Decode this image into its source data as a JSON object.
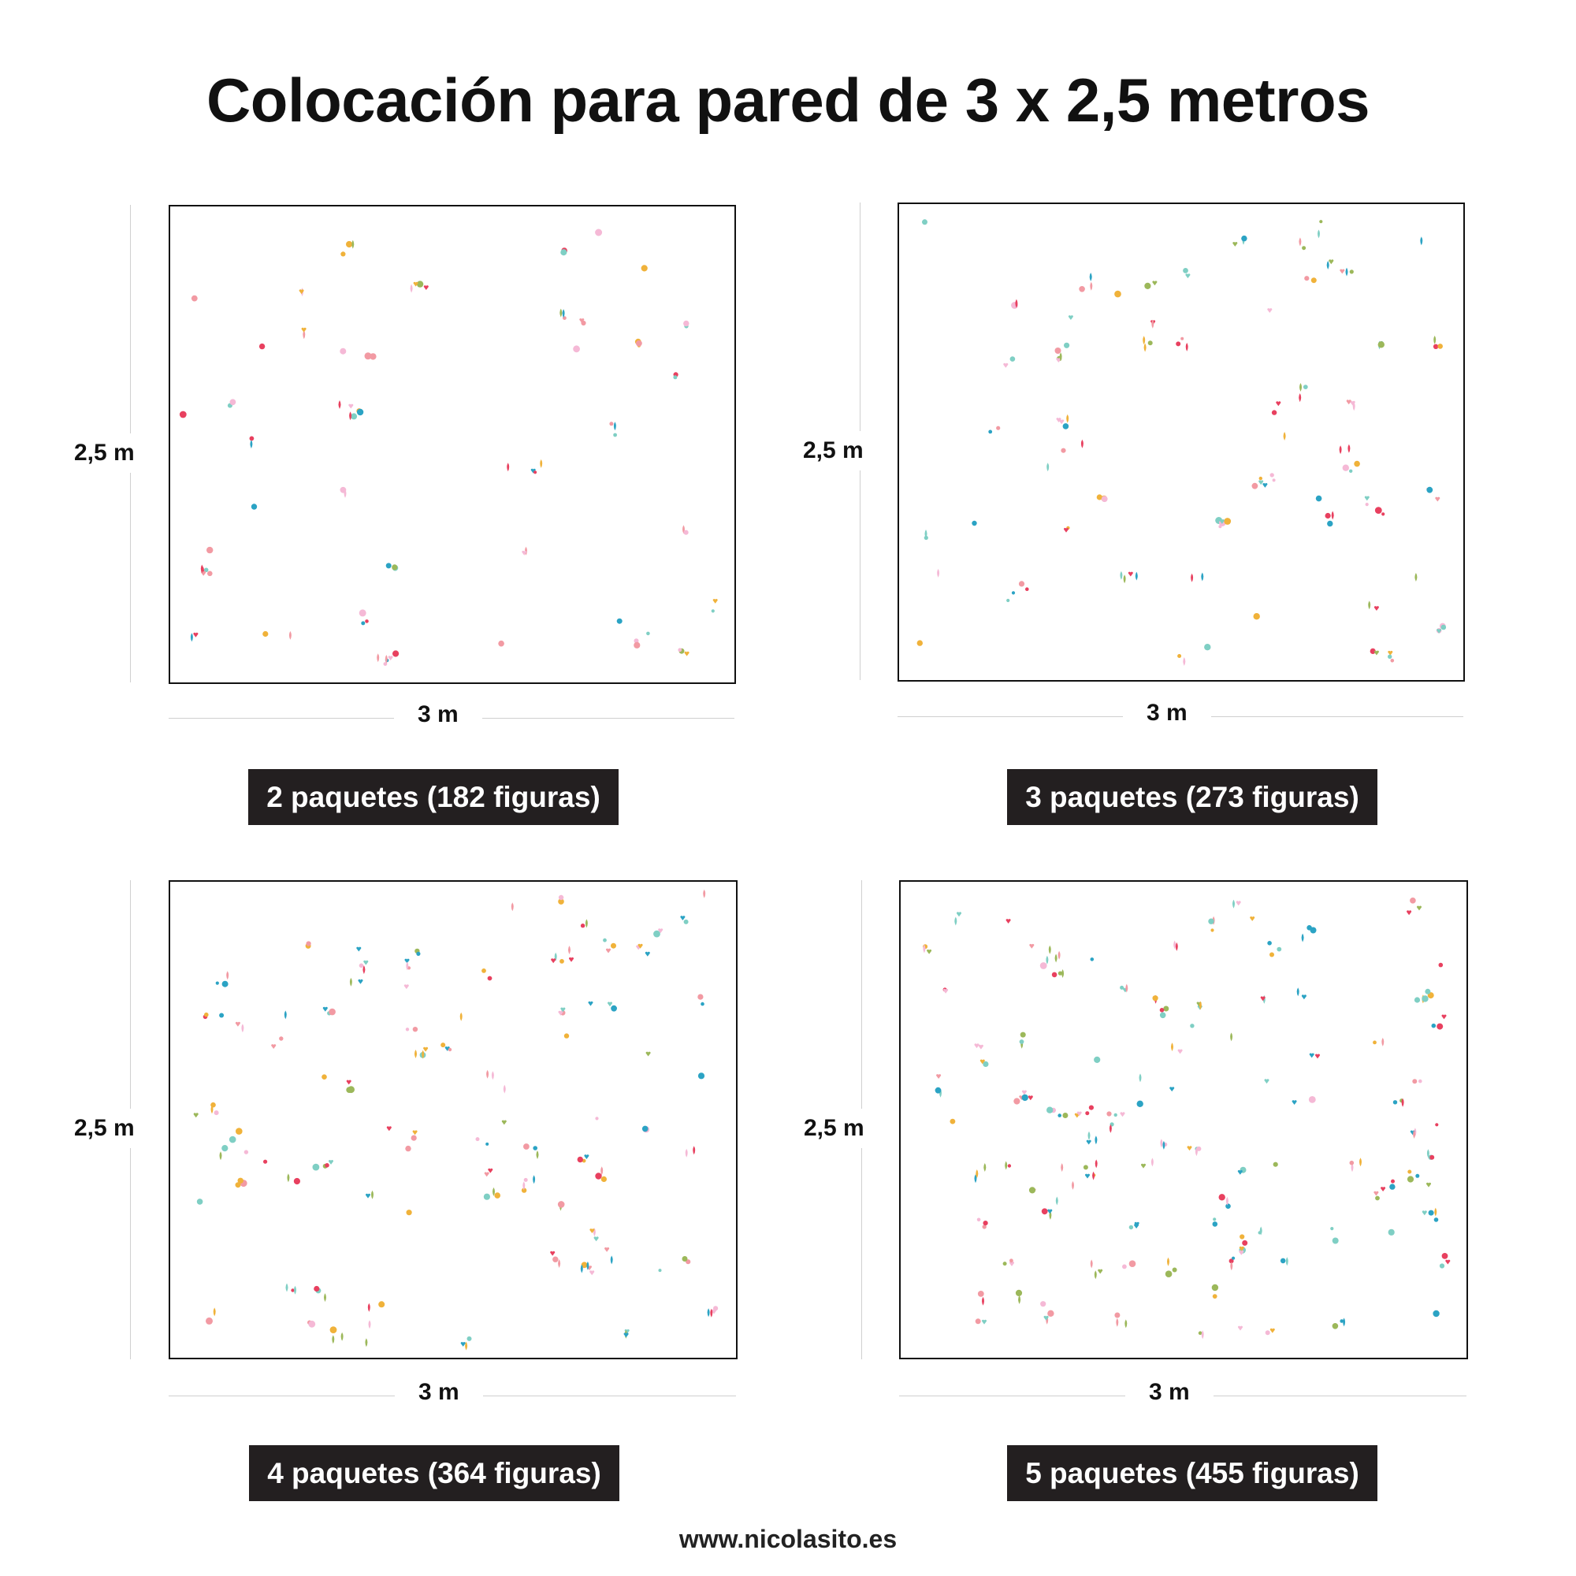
{
  "title": "Colocación para pared de 3 x 2,5 metros",
  "panels": [
    {
      "height_label": "2,5 m",
      "width_label": "3 m",
      "caption": "2 paquetes (182 figuras)",
      "packs": 2,
      "figures": 182
    },
    {
      "height_label": "2,5 m",
      "width_label": "3 m",
      "caption": "3 paquetes (273 figuras)",
      "packs": 3,
      "figures": 273
    },
    {
      "height_label": "2,5 m",
      "width_label": "3 m",
      "caption": "4 paquetes (364 figuras)",
      "packs": 4,
      "figures": 364
    },
    {
      "height_label": "2,5 m",
      "width_label": "3 m",
      "caption": "5 paquetes (455 figuras)",
      "packs": 5,
      "figures": 455
    }
  ],
  "footer": "www.nicolasito.es",
  "colors": {
    "figure_palette": [
      "#e8405f",
      "#f0b23a",
      "#f29aa3",
      "#7fcfc4",
      "#2ba3c4",
      "#9cb85a",
      "#f5b9d6"
    ],
    "caption_bg": "#231f20"
  }
}
